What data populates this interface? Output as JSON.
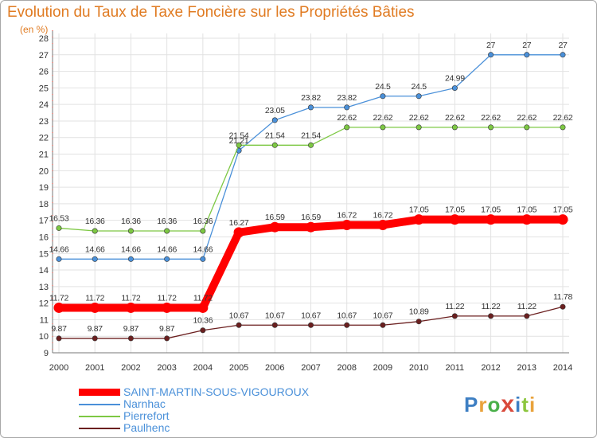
{
  "title": "Evolution du Taux de Taxe Foncière sur les Propriétés Bâties",
  "unit": "(en %)",
  "logo": {
    "text": "Proxiti",
    "letter_colors": [
      "#3e7fc3",
      "#e9a23b",
      "#4ab04a",
      "#d94a3c",
      "#3e7fc3",
      "#8cc63e",
      "#e9a23b"
    ]
  },
  "chart_data": {
    "type": "line",
    "x": [
      2000,
      2001,
      2002,
      2003,
      2004,
      2005,
      2006,
      2007,
      2008,
      2009,
      2010,
      2011,
      2012,
      2013,
      2014
    ],
    "ylim": [
      9,
      28
    ],
    "yticks": [
      9,
      10,
      11,
      12,
      13,
      14,
      15,
      16,
      17,
      18,
      19,
      20,
      21,
      22,
      23,
      24,
      25,
      26,
      27,
      28
    ],
    "grid": true,
    "legend_position": "bottom-left",
    "series": [
      {
        "name": "SAINT-MARTIN-SOUS-VIGOUROUX",
        "color": "#ff0000",
        "emphasis": true,
        "values": [
          11.72,
          11.72,
          11.72,
          11.72,
          11.72,
          16.27,
          16.59,
          16.59,
          16.72,
          16.72,
          17.05,
          17.05,
          17.05,
          17.05,
          17.05
        ]
      },
      {
        "name": "Narnhac",
        "color": "#4a90d9",
        "values": [
          14.66,
          14.66,
          14.66,
          14.66,
          14.66,
          21.21,
          23.05,
          23.82,
          23.82,
          24.5,
          24.5,
          24.99,
          27,
          27,
          27
        ]
      },
      {
        "name": "Pierrefort",
        "color": "#7dc843",
        "values": [
          16.53,
          16.36,
          16.36,
          16.36,
          16.36,
          21.54,
          21.54,
          21.54,
          22.62,
          22.62,
          22.62,
          22.62,
          22.62,
          22.62,
          22.62
        ]
      },
      {
        "name": "Paulhenc",
        "color": "#6b1f1f",
        "values": [
          9.87,
          9.87,
          9.87,
          9.87,
          10.36,
          10.67,
          10.67,
          10.67,
          10.67,
          10.67,
          10.89,
          11.22,
          11.22,
          11.22,
          11.78
        ]
      }
    ]
  }
}
